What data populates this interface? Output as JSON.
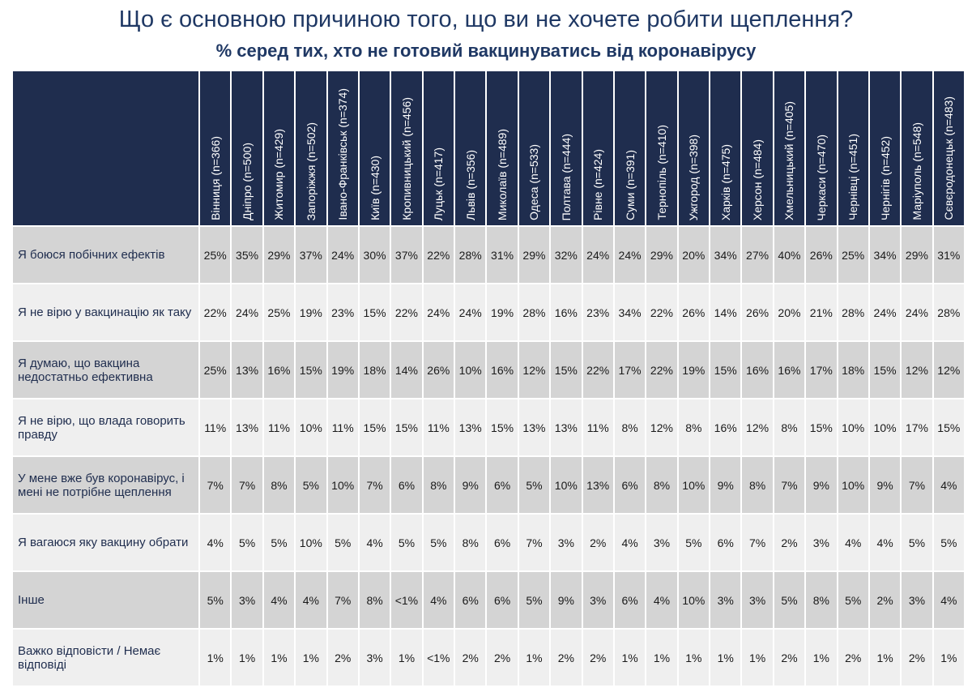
{
  "header": {
    "title": "Що є основною причиною того, що ви не хочете робити щеплення?",
    "subtitle": "% серед тих, хто не готовий вакцинуватись від коронавірусу"
  },
  "table": {
    "columns": [
      "Вінниця (n=366)",
      "Дніпро (n=500)",
      "Житомир (n=429)",
      "Запоріжжя (n=502)",
      "Івано-Франківськ (n=374)",
      "Київ (n=430)",
      "Кропивницький (n=456)",
      "Луцьк (n=417)",
      "Львів (n=356)",
      "Миколаїв (n=489)",
      "Одеса (n=533)",
      "Полтава (n=444)",
      "Рівне (n=424)",
      "Суми (n=391)",
      "Тернопіль (n=410)",
      "Ужгород (n=398)",
      "Харків (n=475)",
      "Херсон (n=484)",
      "Хмельницький (n=405)",
      "Черкаси (n=470)",
      "Чернівці (n=451)",
      "Чернігів (n=452)",
      "Маріуполь (n=548)",
      "Сєвєродонецьк (n=483)"
    ],
    "rows": [
      {
        "label": "Я боюся побічних ефектів",
        "cells": [
          "25%",
          "35%",
          "29%",
          "37%",
          "24%",
          "30%",
          "37%",
          "22%",
          "28%",
          "31%",
          "29%",
          "32%",
          "24%",
          "24%",
          "29%",
          "20%",
          "34%",
          "27%",
          "40%",
          "26%",
          "25%",
          "34%",
          "29%",
          "31%"
        ]
      },
      {
        "label": "Я не вірю у вакцинацію як таку",
        "cells": [
          "22%",
          "24%",
          "25%",
          "19%",
          "23%",
          "15%",
          "22%",
          "24%",
          "24%",
          "19%",
          "28%",
          "16%",
          "23%",
          "34%",
          "22%",
          "26%",
          "14%",
          "26%",
          "20%",
          "21%",
          "28%",
          "24%",
          "24%",
          "28%"
        ]
      },
      {
        "label": "Я думаю, що вакцина недостатньо ефективна",
        "cells": [
          "25%",
          "13%",
          "16%",
          "15%",
          "19%",
          "18%",
          "14%",
          "26%",
          "10%",
          "16%",
          "12%",
          "15%",
          "22%",
          "17%",
          "22%",
          "19%",
          "15%",
          "16%",
          "16%",
          "17%",
          "18%",
          "15%",
          "12%",
          "12%"
        ]
      },
      {
        "label": "Я не вірю, що влада говорить правду",
        "cells": [
          "11%",
          "13%",
          "11%",
          "10%",
          "11%",
          "15%",
          "15%",
          "11%",
          "13%",
          "15%",
          "13%",
          "13%",
          "11%",
          "8%",
          "12%",
          "8%",
          "16%",
          "12%",
          "8%",
          "15%",
          "10%",
          "10%",
          "17%",
          "15%"
        ]
      },
      {
        "label": "У мене вже був коронавірус, і мені не потрібне щеплення",
        "cells": [
          "7%",
          "7%",
          "8%",
          "5%",
          "10%",
          "7%",
          "6%",
          "8%",
          "9%",
          "6%",
          "5%",
          "10%",
          "13%",
          "6%",
          "8%",
          "10%",
          "9%",
          "8%",
          "7%",
          "9%",
          "10%",
          "9%",
          "7%",
          "4%"
        ]
      },
      {
        "label": "Я вагаюся яку вакцину обрати",
        "cells": [
          "4%",
          "5%",
          "5%",
          "10%",
          "5%",
          "4%",
          "5%",
          "5%",
          "8%",
          "6%",
          "7%",
          "3%",
          "2%",
          "4%",
          "3%",
          "5%",
          "6%",
          "7%",
          "2%",
          "3%",
          "4%",
          "4%",
          "5%",
          "5%"
        ]
      },
      {
        "label": "Інше",
        "cells": [
          "5%",
          "3%",
          "4%",
          "4%",
          "7%",
          "8%",
          "<1%",
          "4%",
          "6%",
          "6%",
          "5%",
          "9%",
          "3%",
          "6%",
          "4%",
          "10%",
          "3%",
          "3%",
          "5%",
          "8%",
          "5%",
          "2%",
          "3%",
          "4%"
        ]
      },
      {
        "label": "Важко відповісти / Немає відповіді",
        "cells": [
          "1%",
          "1%",
          "1%",
          "1%",
          "2%",
          "3%",
          "1%",
          "<1%",
          "2%",
          "2%",
          "1%",
          "2%",
          "2%",
          "1%",
          "1%",
          "1%",
          "1%",
          "1%",
          "2%",
          "1%",
          "2%",
          "1%",
          "2%",
          "1%"
        ]
      }
    ]
  }
}
